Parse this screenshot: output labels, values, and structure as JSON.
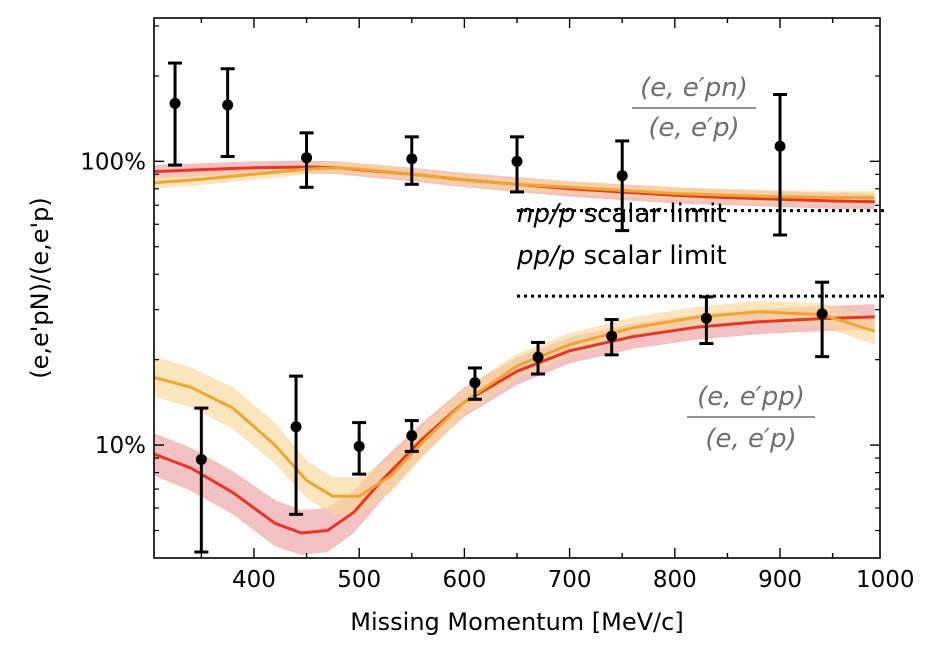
{
  "chart_data": {
    "type": "line",
    "xlabel": "Missing Momentum [MeV/c]",
    "ylabel": "(e,e'pN)/(e,e'p)",
    "xlim": [
      305,
      995
    ],
    "ylim": [
      0.04,
      3.2
    ],
    "yscale": "log",
    "x_ticks": [
      400,
      500,
      600,
      700,
      800,
      900,
      1000
    ],
    "x_tick_labels": [
      "400",
      "500",
      "600",
      "700",
      "800",
      "900",
      "1000"
    ],
    "y_ticks": [
      0.1,
      1.0
    ],
    "y_tick_labels": [
      "10%",
      "100%"
    ],
    "colors": {
      "red": "#e8352a",
      "orange": "#f0a532",
      "red_band": "#eea0a3",
      "orange_band": "#f7d79a",
      "limit": "#000000",
      "ratio_text": "#6e6e6e"
    },
    "annotations": {
      "np_label_italic": "np/p",
      "np_label_rest": " scalar limit",
      "pp_label_italic": "pp/p",
      "pp_label_rest": " scalar limit",
      "pn_ratio_num": "(e, e′pn)",
      "pn_ratio_den": "(e, e′p)",
      "pp_ratio_num": "(e, e′pp)",
      "pp_ratio_den": "(e, e′p)"
    },
    "limits": [
      {
        "name": "np/p scalar limit",
        "x_start": 650,
        "x_end": 1000,
        "y": 0.67
      },
      {
        "name": "pp/p scalar limit",
        "x_start": 650,
        "x_end": 1000,
        "y": 0.335
      }
    ],
    "series": [
      {
        "name": "(e,e'pn)/(e,e'p) data",
        "kind": "errorbar",
        "points": [
          {
            "x": 325,
            "y": 1.6,
            "lo": 0.97,
            "hi": 2.22
          },
          {
            "x": 375,
            "y": 1.58,
            "lo": 1.04,
            "hi": 2.12
          },
          {
            "x": 450,
            "y": 1.03,
            "lo": 0.81,
            "hi": 1.26
          },
          {
            "x": 550,
            "y": 1.02,
            "lo": 0.83,
            "hi": 1.22
          },
          {
            "x": 650,
            "y": 1.0,
            "lo": 0.78,
            "hi": 1.22
          },
          {
            "x": 750,
            "y": 0.89,
            "lo": 0.57,
            "hi": 1.18
          },
          {
            "x": 900,
            "y": 1.13,
            "lo": 0.55,
            "hi": 1.72
          }
        ]
      },
      {
        "name": "(e,e'pp)/(e,e'p) data",
        "kind": "errorbar",
        "points": [
          {
            "x": 350,
            "y": 0.089,
            "lo": 0.042,
            "hi": 0.135
          },
          {
            "x": 440,
            "y": 0.116,
            "lo": 0.057,
            "hi": 0.175
          },
          {
            "x": 500,
            "y": 0.099,
            "lo": 0.079,
            "hi": 0.12
          },
          {
            "x": 550,
            "y": 0.108,
            "lo": 0.095,
            "hi": 0.122
          },
          {
            "x": 610,
            "y": 0.166,
            "lo": 0.145,
            "hi": 0.187
          },
          {
            "x": 670,
            "y": 0.204,
            "lo": 0.178,
            "hi": 0.23
          },
          {
            "x": 740,
            "y": 0.242,
            "lo": 0.208,
            "hi": 0.277
          },
          {
            "x": 830,
            "y": 0.28,
            "lo": 0.228,
            "hi": 0.333
          },
          {
            "x": 940,
            "y": 0.29,
            "lo": 0.205,
            "hi": 0.375
          }
        ]
      },
      {
        "name": "pn model (red)",
        "kind": "line",
        "color": "red",
        "x": [
          305,
          350,
          400,
          450,
          480,
          500,
          550,
          600,
          650,
          700,
          750,
          800,
          850,
          900,
          950,
          990
        ],
        "y": [
          0.92,
          0.935,
          0.95,
          0.955,
          0.95,
          0.935,
          0.9,
          0.86,
          0.83,
          0.8,
          0.78,
          0.76,
          0.745,
          0.735,
          0.725,
          0.72
        ],
        "band_lo": [
          0.87,
          0.885,
          0.9,
          0.905,
          0.9,
          0.885,
          0.85,
          0.81,
          0.78,
          0.75,
          0.73,
          0.71,
          0.7,
          0.69,
          0.68,
          0.675
        ],
        "band_hi": [
          0.97,
          0.985,
          1.0,
          1.005,
          1.0,
          0.985,
          0.95,
          0.91,
          0.88,
          0.85,
          0.83,
          0.81,
          0.795,
          0.785,
          0.775,
          0.77
        ]
      },
      {
        "name": "pn model (orange)",
        "kind": "line",
        "color": "orange",
        "x": [
          305,
          350,
          400,
          450,
          480,
          500,
          550,
          600,
          650,
          700,
          750,
          800,
          850,
          900,
          950,
          990
        ],
        "y": [
          0.84,
          0.865,
          0.9,
          0.94,
          0.95,
          0.94,
          0.9,
          0.86,
          0.83,
          0.81,
          0.79,
          0.77,
          0.76,
          0.75,
          0.745,
          0.745
        ],
        "band_lo": [
          0.8,
          0.825,
          0.86,
          0.9,
          0.91,
          0.9,
          0.86,
          0.82,
          0.79,
          0.77,
          0.75,
          0.73,
          0.72,
          0.71,
          0.705,
          0.705
        ],
        "band_hi": [
          0.88,
          0.905,
          0.94,
          0.98,
          0.99,
          0.98,
          0.94,
          0.9,
          0.87,
          0.85,
          0.83,
          0.81,
          0.8,
          0.79,
          0.785,
          0.785
        ]
      },
      {
        "name": "pp model (red)",
        "kind": "line",
        "color": "red",
        "x": [
          305,
          340,
          380,
          420,
          445,
          470,
          495,
          520,
          560,
          600,
          650,
          700,
          760,
          820,
          880,
          940,
          990
        ],
        "y": [
          0.093,
          0.083,
          0.068,
          0.053,
          0.049,
          0.05,
          0.058,
          0.074,
          0.105,
          0.142,
          0.182,
          0.215,
          0.241,
          0.26,
          0.272,
          0.279,
          0.283
        ],
        "band_lo": [
          0.078,
          0.069,
          0.057,
          0.044,
          0.041,
          0.042,
          0.049,
          0.063,
          0.092,
          0.126,
          0.163,
          0.194,
          0.218,
          0.235,
          0.246,
          0.252,
          0.256
        ],
        "band_hi": [
          0.11,
          0.098,
          0.081,
          0.064,
          0.059,
          0.06,
          0.069,
          0.087,
          0.12,
          0.16,
          0.204,
          0.24,
          0.268,
          0.288,
          0.301,
          0.309,
          0.314
        ]
      },
      {
        "name": "pp model (orange)",
        "kind": "line",
        "color": "orange",
        "x": [
          305,
          340,
          380,
          420,
          450,
          475,
          500,
          530,
          560,
          600,
          650,
          700,
          760,
          820,
          880,
          940,
          990
        ],
        "y": [
          0.173,
          0.16,
          0.135,
          0.1,
          0.075,
          0.066,
          0.066,
          0.078,
          0.102,
          0.142,
          0.19,
          0.226,
          0.259,
          0.282,
          0.295,
          0.288,
          0.252
        ],
        "band_lo": [
          0.148,
          0.136,
          0.114,
          0.086,
          0.065,
          0.057,
          0.057,
          0.068,
          0.09,
          0.128,
          0.172,
          0.206,
          0.238,
          0.259,
          0.27,
          0.262,
          0.226
        ],
        "band_hi": [
          0.205,
          0.188,
          0.16,
          0.12,
          0.088,
          0.077,
          0.077,
          0.09,
          0.116,
          0.158,
          0.21,
          0.248,
          0.282,
          0.307,
          0.322,
          0.316,
          0.28
        ]
      }
    ]
  }
}
